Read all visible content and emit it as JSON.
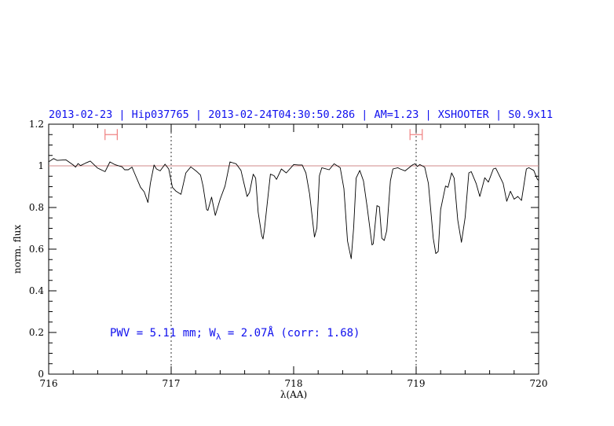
{
  "chart_data": {
    "type": "line",
    "title": "2013-02-23 | Hip037765 | 2013-02-24T04:30:50.286 | AM=1.23 | XSHOOTER | S0.9x11",
    "xlabel": "λ(AA)",
    "ylabel": "norm. flux",
    "xlim": [
      716,
      720
    ],
    "ylim": [
      0,
      1.2
    ],
    "xticks": [
      "716",
      "717",
      "718",
      "719",
      "720"
    ],
    "yticks": [
      "0",
      "0.2",
      "0.4",
      "0.6",
      "0.8",
      "1",
      "1.2"
    ],
    "grid": false,
    "reference_line_y": 1.0,
    "vertical_markers": [
      717,
      719
    ],
    "error_bars": [
      {
        "y": 1.15,
        "x_from": 716.46,
        "x_to": 716.56
      },
      {
        "y": 1.15,
        "x_from": 718.95,
        "x_to": 719.05
      }
    ],
    "annotation": {
      "pwv": "PWV = 5.11 mm; W",
      "sub": "λ",
      "rest": " = 2.07Å (corr: 1.68)"
    },
    "colors": {
      "title": "#1010ee",
      "spectrum": "#000000",
      "error_bars": "#f08080",
      "reference": "#d08888"
    },
    "series": [
      {
        "x": [
          716.0,
          716.01,
          716.04,
          716.07,
          716.14,
          716.2,
          716.22,
          716.24,
          716.26,
          716.3,
          716.34,
          716.4,
          716.46,
          716.5,
          716.54,
          716.6,
          716.62,
          716.65,
          716.68,
          716.7,
          716.75,
          716.78,
          716.81,
          716.83,
          716.86,
          716.88,
          716.91,
          716.95,
          716.98,
          717.01,
          717.04,
          717.08,
          717.12,
          717.16,
          717.21,
          717.24,
          717.26,
          717.29,
          717.3,
          717.33,
          717.36,
          717.4,
          717.44,
          717.48,
          717.53,
          717.57,
          717.59,
          717.62,
          717.64,
          717.67,
          717.69,
          717.71,
          717.74,
          717.75,
          717.76,
          717.81,
          717.84,
          717.86,
          717.9,
          717.94,
          718.0,
          718.04,
          718.07,
          718.1,
          718.13,
          718.17,
          718.19,
          718.21,
          718.23,
          718.29,
          718.33,
          718.38,
          718.41,
          718.44,
          718.47,
          718.49,
          718.51,
          718.54,
          718.57,
          718.6,
          718.64,
          718.65,
          718.68,
          718.7,
          718.72,
          718.74,
          718.76,
          718.79,
          718.81,
          718.85,
          718.87,
          718.91,
          718.97,
          718.99,
          719.01,
          719.03,
          719.07,
          719.1,
          719.14,
          719.16,
          719.18,
          719.2,
          719.24,
          719.26,
          719.29,
          719.31,
          719.34,
          719.37,
          719.4,
          719.43,
          719.45,
          719.49,
          719.52,
          719.56,
          719.59,
          719.63,
          719.65,
          719.71,
          719.74,
          719.77,
          719.8,
          719.83,
          719.86,
          719.9,
          719.92,
          719.96,
          719.99,
          720.0
        ],
        "y": [
          1.02,
          1.023,
          1.035,
          1.026,
          1.029,
          1.004,
          0.994,
          1.011,
          1.001,
          1.013,
          1.023,
          0.989,
          0.972,
          1.019,
          1.006,
          0.995,
          0.981,
          0.981,
          0.994,
          0.966,
          0.897,
          0.875,
          0.824,
          0.916,
          1.004,
          0.985,
          0.976,
          1.008,
          0.985,
          0.897,
          0.878,
          0.863,
          0.966,
          0.995,
          0.972,
          0.956,
          0.903,
          0.79,
          0.786,
          0.85,
          0.762,
          0.84,
          0.903,
          1.019,
          1.01,
          0.978,
          0.928,
          0.853,
          0.872,
          0.96,
          0.941,
          0.777,
          0.664,
          0.649,
          0.689,
          0.96,
          0.953,
          0.935,
          0.985,
          0.966,
          1.006,
          1.004,
          1.004,
          0.966,
          0.865,
          0.658,
          0.702,
          0.953,
          0.991,
          0.981,
          1.01,
          0.991,
          0.891,
          0.639,
          0.554,
          0.702,
          0.941,
          0.978,
          0.928,
          0.803,
          0.62,
          0.626,
          0.809,
          0.803,
          0.652,
          0.642,
          0.689,
          0.928,
          0.985,
          0.991,
          0.985,
          0.976,
          1.004,
          1.01,
          0.997,
          1.006,
          0.994,
          0.916,
          0.652,
          0.579,
          0.589,
          0.79,
          0.903,
          0.897,
          0.966,
          0.941,
          0.74,
          0.633,
          0.752,
          0.966,
          0.972,
          0.916,
          0.853,
          0.943,
          0.922,
          0.985,
          0.989,
          0.916,
          0.83,
          0.878,
          0.84,
          0.853,
          0.834,
          0.985,
          0.991,
          0.978,
          0.935,
          0.93
        ]
      }
    ]
  }
}
